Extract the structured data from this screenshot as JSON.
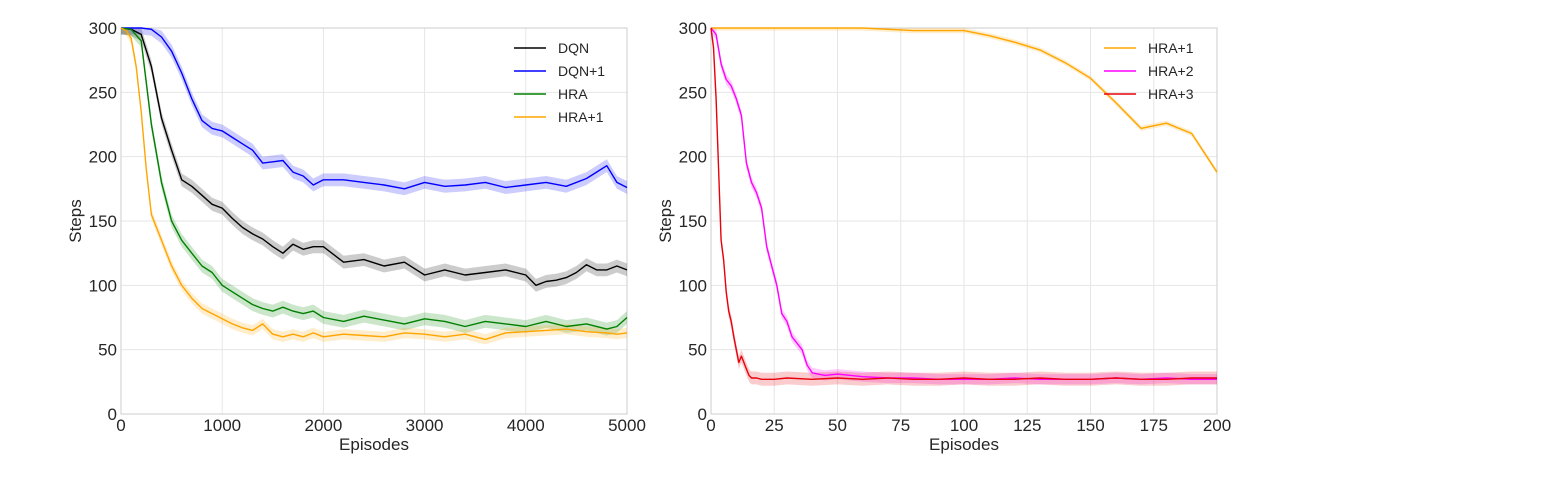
{
  "chart_data": [
    {
      "type": "line",
      "xlabel": "Episodes",
      "ylabel": "Steps",
      "xlim": [
        0,
        5000
      ],
      "ylim": [
        0,
        300
      ],
      "xticks": [
        0,
        1000,
        2000,
        3000,
        4000,
        5000
      ],
      "yticks": [
        0,
        50,
        100,
        150,
        200,
        250,
        300
      ],
      "xtick_labels": [
        "0",
        "1000",
        "2000",
        "3000",
        "4000",
        "5000"
      ],
      "ytick_labels": [
        "0",
        "50",
        "100",
        "150",
        "200",
        "250",
        "300"
      ],
      "grid": true,
      "legend_position": "top-right",
      "shaded_band": true,
      "series": [
        {
          "name": "DQN",
          "color": "#000000",
          "x": [
            0,
            100,
            200,
            300,
            400,
            500,
            600,
            700,
            800,
            900,
            1000,
            1100,
            1200,
            1300,
            1400,
            1500,
            1600,
            1700,
            1800,
            1900,
            2000,
            2200,
            2400,
            2600,
            2800,
            3000,
            3200,
            3400,
            3600,
            3800,
            4000,
            4100,
            4200,
            4300,
            4400,
            4500,
            4600,
            4700,
            4800,
            4900,
            5000
          ],
          "y": [
            300,
            299,
            295,
            270,
            230,
            205,
            182,
            177,
            170,
            163,
            160,
            152,
            145,
            140,
            136,
            130,
            125,
            132,
            128,
            130,
            130,
            118,
            120,
            115,
            118,
            108,
            112,
            108,
            110,
            112,
            108,
            100,
            103,
            104,
            106,
            110,
            116,
            112,
            112,
            115,
            112
          ],
          "band": 5
        },
        {
          "name": "DQN+1",
          "color": "#0000ff",
          "x": [
            0,
            100,
            200,
            300,
            400,
            500,
            600,
            700,
            800,
            900,
            1000,
            1100,
            1200,
            1300,
            1400,
            1500,
            1600,
            1700,
            1800,
            1900,
            2000,
            2200,
            2400,
            2600,
            2800,
            3000,
            3200,
            3400,
            3600,
            3800,
            4000,
            4200,
            4400,
            4600,
            4700,
            4800,
            4900,
            5000
          ],
          "y": [
            300,
            300,
            300,
            299,
            293,
            282,
            265,
            245,
            228,
            222,
            220,
            215,
            210,
            205,
            195,
            196,
            197,
            188,
            185,
            178,
            182,
            182,
            180,
            178,
            175,
            180,
            177,
            178,
            180,
            176,
            178,
            180,
            177,
            183,
            188,
            193,
            180,
            176
          ],
          "band": 5
        },
        {
          "name": "HRA",
          "color": "#008000",
          "x": [
            0,
            100,
            200,
            300,
            400,
            500,
            600,
            700,
            800,
            900,
            1000,
            1100,
            1200,
            1300,
            1400,
            1500,
            1600,
            1700,
            1800,
            1900,
            2000,
            2200,
            2400,
            2600,
            2800,
            3000,
            3200,
            3400,
            3600,
            3800,
            4000,
            4200,
            4400,
            4600,
            4800,
            4900,
            5000
          ],
          "y": [
            300,
            299,
            290,
            225,
            180,
            150,
            135,
            125,
            115,
            110,
            100,
            95,
            90,
            85,
            82,
            80,
            83,
            80,
            78,
            80,
            75,
            72,
            76,
            73,
            70,
            74,
            72,
            68,
            72,
            70,
            68,
            72,
            68,
            70,
            66,
            68,
            75
          ],
          "band": 5
        },
        {
          "name": "HRA+1",
          "color": "#ffa500",
          "x": [
            0,
            50,
            100,
            150,
            200,
            250,
            300,
            400,
            500,
            600,
            700,
            800,
            900,
            1000,
            1100,
            1200,
            1300,
            1400,
            1500,
            1600,
            1700,
            1800,
            1900,
            2000,
            2200,
            2400,
            2600,
            2800,
            3000,
            3200,
            3400,
            3600,
            3800,
            4000,
            4200,
            4400,
            4600,
            4800,
            4900,
            5000
          ],
          "y": [
            300,
            298,
            292,
            270,
            235,
            190,
            155,
            135,
            115,
            100,
            90,
            82,
            78,
            74,
            70,
            67,
            65,
            70,
            62,
            60,
            62,
            60,
            63,
            60,
            62,
            61,
            60,
            63,
            62,
            60,
            62,
            58,
            63,
            64,
            65,
            66,
            64,
            63,
            62,
            63
          ],
          "band": 4
        }
      ]
    },
    {
      "type": "line",
      "xlabel": "Episodes",
      "ylabel": "Steps",
      "xlim": [
        0,
        200
      ],
      "ylim": [
        0,
        300
      ],
      "xticks": [
        0,
        25,
        50,
        75,
        100,
        125,
        150,
        175,
        200
      ],
      "yticks": [
        0,
        50,
        100,
        150,
        200,
        250,
        300
      ],
      "xtick_labels": [
        "0",
        "25",
        "50",
        "75",
        "100",
        "125",
        "150",
        "175",
        "200"
      ],
      "ytick_labels": [
        "0",
        "50",
        "100",
        "150",
        "200",
        "250",
        "300"
      ],
      "grid": true,
      "legend_position": "top-right",
      "shaded_band": true,
      "series": [
        {
          "name": "HRA+1",
          "color": "#ffa500",
          "x": [
            0,
            25,
            50,
            60,
            70,
            80,
            90,
            100,
            110,
            120,
            130,
            140,
            150,
            160,
            170,
            180,
            190,
            200
          ],
          "y": [
            300,
            300,
            300,
            300,
            299,
            298,
            298,
            298,
            294,
            289,
            283,
            273,
            261,
            242,
            222,
            226,
            218,
            188
          ],
          "band": 2
        },
        {
          "name": "HRA+2",
          "color": "#ff00ff",
          "x": [
            0,
            2,
            4,
            6,
            8,
            10,
            12,
            14,
            16,
            18,
            20,
            22,
            24,
            26,
            28,
            30,
            32,
            34,
            36,
            38,
            40,
            45,
            50,
            60,
            70,
            80,
            90,
            100,
            110,
            120,
            130,
            140,
            150,
            160,
            170,
            180,
            190,
            200
          ],
          "y": [
            300,
            295,
            272,
            260,
            255,
            245,
            232,
            195,
            180,
            172,
            160,
            130,
            115,
            100,
            78,
            72,
            60,
            55,
            50,
            38,
            32,
            30,
            31,
            29,
            28,
            28,
            27,
            27,
            27,
            28,
            27,
            27,
            27,
            28,
            27,
            28,
            27,
            27
          ],
          "band": 4
        },
        {
          "name": "HRA+3",
          "color": "#e8000b",
          "x": [
            0,
            1,
            2,
            3,
            4,
            5,
            6,
            7,
            8,
            9,
            10,
            11,
            12,
            13,
            14,
            15,
            16,
            18,
            20,
            25,
            30,
            40,
            50,
            60,
            70,
            80,
            90,
            100,
            110,
            120,
            130,
            140,
            150,
            160,
            170,
            180,
            190,
            200
          ],
          "y": [
            300,
            285,
            245,
            190,
            135,
            120,
            95,
            80,
            72,
            60,
            50,
            40,
            45,
            40,
            35,
            30,
            28,
            28,
            27,
            27,
            28,
            27,
            28,
            27,
            28,
            27,
            27,
            28,
            27,
            27,
            28,
            27,
            27,
            28,
            27,
            27,
            28,
            28
          ],
          "band": 5
        }
      ]
    }
  ]
}
